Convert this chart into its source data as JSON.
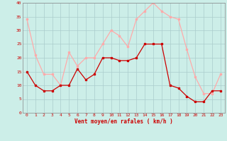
{
  "hours": [
    0,
    1,
    2,
    3,
    4,
    5,
    6,
    7,
    8,
    9,
    10,
    11,
    12,
    13,
    14,
    15,
    16,
    17,
    18,
    19,
    20,
    21,
    22,
    23
  ],
  "wind_avg": [
    15,
    10,
    8,
    8,
    10,
    10,
    16,
    12,
    14,
    20,
    20,
    19,
    19,
    20,
    25,
    25,
    25,
    10,
    9,
    6,
    4,
    4,
    8,
    8
  ],
  "wind_gust": [
    34,
    21,
    14,
    14,
    10,
    22,
    17,
    20,
    20,
    25,
    30,
    28,
    24,
    34,
    37,
    40,
    37,
    35,
    34,
    23,
    13,
    7,
    7,
    14
  ],
  "avg_color": "#cc0000",
  "gust_color": "#ffaaaa",
  "bg_color": "#cceee8",
  "grid_color": "#aacccc",
  "xlabel": "Vent moyen/en rafales ( km/h )",
  "xlabel_color": "#cc0000",
  "tick_color": "#cc0000",
  "spine_color": "#888888",
  "ylim": [
    0,
    40
  ],
  "yticks": [
    0,
    5,
    10,
    15,
    20,
    25,
    30,
    35,
    40
  ]
}
